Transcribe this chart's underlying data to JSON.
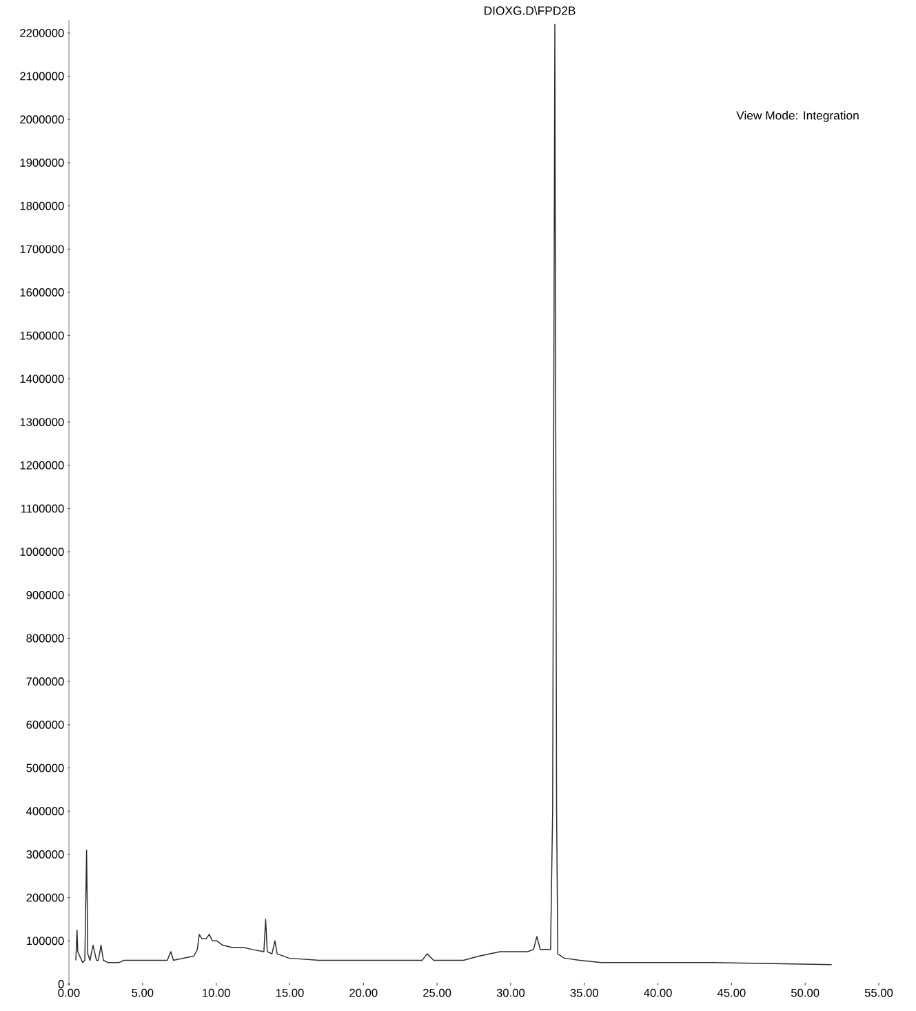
{
  "chart_data": {
    "type": "line",
    "title": "DIOXG.D\\FPD2B",
    "annotations": [
      "View Mode: Integration"
    ],
    "series": [
      {
        "color": "#2a2a2a",
        "x": [
          0.47,
          0.55,
          0.6,
          0.93,
          1.08,
          1.2,
          1.28,
          1.43,
          1.64,
          1.87,
          2.0,
          2.18,
          2.34,
          2.65,
          3.41,
          3.74,
          6.68,
          6.92,
          7.1,
          8.49,
          8.72,
          8.85,
          9.03,
          9.33,
          9.53,
          9.74,
          10.05,
          10.44,
          11.06,
          11.84,
          12.46,
          13.24,
          13.36,
          13.47,
          13.79,
          13.99,
          14.14,
          14.95,
          17.0,
          20.0,
          23.99,
          24.33,
          24.77,
          26.79,
          27.88,
          29.28,
          31.15,
          31.55,
          31.78,
          32.01,
          32.71,
          32.85,
          33.0,
          33.12,
          33.2,
          33.64,
          34.7,
          36.16,
          43.73,
          51.8
        ],
        "values": [
          55000,
          125000,
          75000,
          50000,
          55000,
          310000,
          70000,
          55000,
          90000,
          55000,
          55000,
          90000,
          55000,
          50000,
          50000,
          55000,
          55000,
          75000,
          55000,
          65000,
          80000,
          115000,
          105000,
          105000,
          115000,
          100000,
          100000,
          90000,
          85000,
          85000,
          80000,
          75000,
          150000,
          75000,
          70000,
          100000,
          70000,
          60000,
          55000,
          55000,
          55000,
          70000,
          55000,
          55000,
          65000,
          75000,
          75000,
          80000,
          110000,
          80000,
          80000,
          400000,
          2220000,
          400000,
          70000,
          60000,
          55000,
          50000,
          50000,
          45000
        ]
      }
    ],
    "xlim": [
      0,
      55
    ],
    "xticks": [
      {
        "value": 0,
        "label": "0.00"
      },
      {
        "value": 5,
        "label": "5.00"
      },
      {
        "value": 10,
        "label": "10.00"
      },
      {
        "value": 15,
        "label": "15.00"
      },
      {
        "value": 20,
        "label": "20.00"
      },
      {
        "value": 25,
        "label": "25.00"
      },
      {
        "value": 30,
        "label": "30.00"
      },
      {
        "value": 35,
        "label": "35.00"
      },
      {
        "value": 40,
        "label": "40.00"
      },
      {
        "value": 45,
        "label": "45.00"
      },
      {
        "value": 50,
        "label": "50.00"
      },
      {
        "value": 55,
        "label": "55.00"
      }
    ],
    "ylim": [
      0,
      2230000
    ],
    "yticks": [
      0,
      100000,
      200000,
      300000,
      400000,
      500000,
      600000,
      700000,
      800000,
      900000,
      1000000,
      1100000,
      1200000,
      1300000,
      1400000,
      1500000,
      1600000,
      1700000,
      1800000,
      1900000,
      2000000,
      2100000,
      2200000
    ]
  }
}
